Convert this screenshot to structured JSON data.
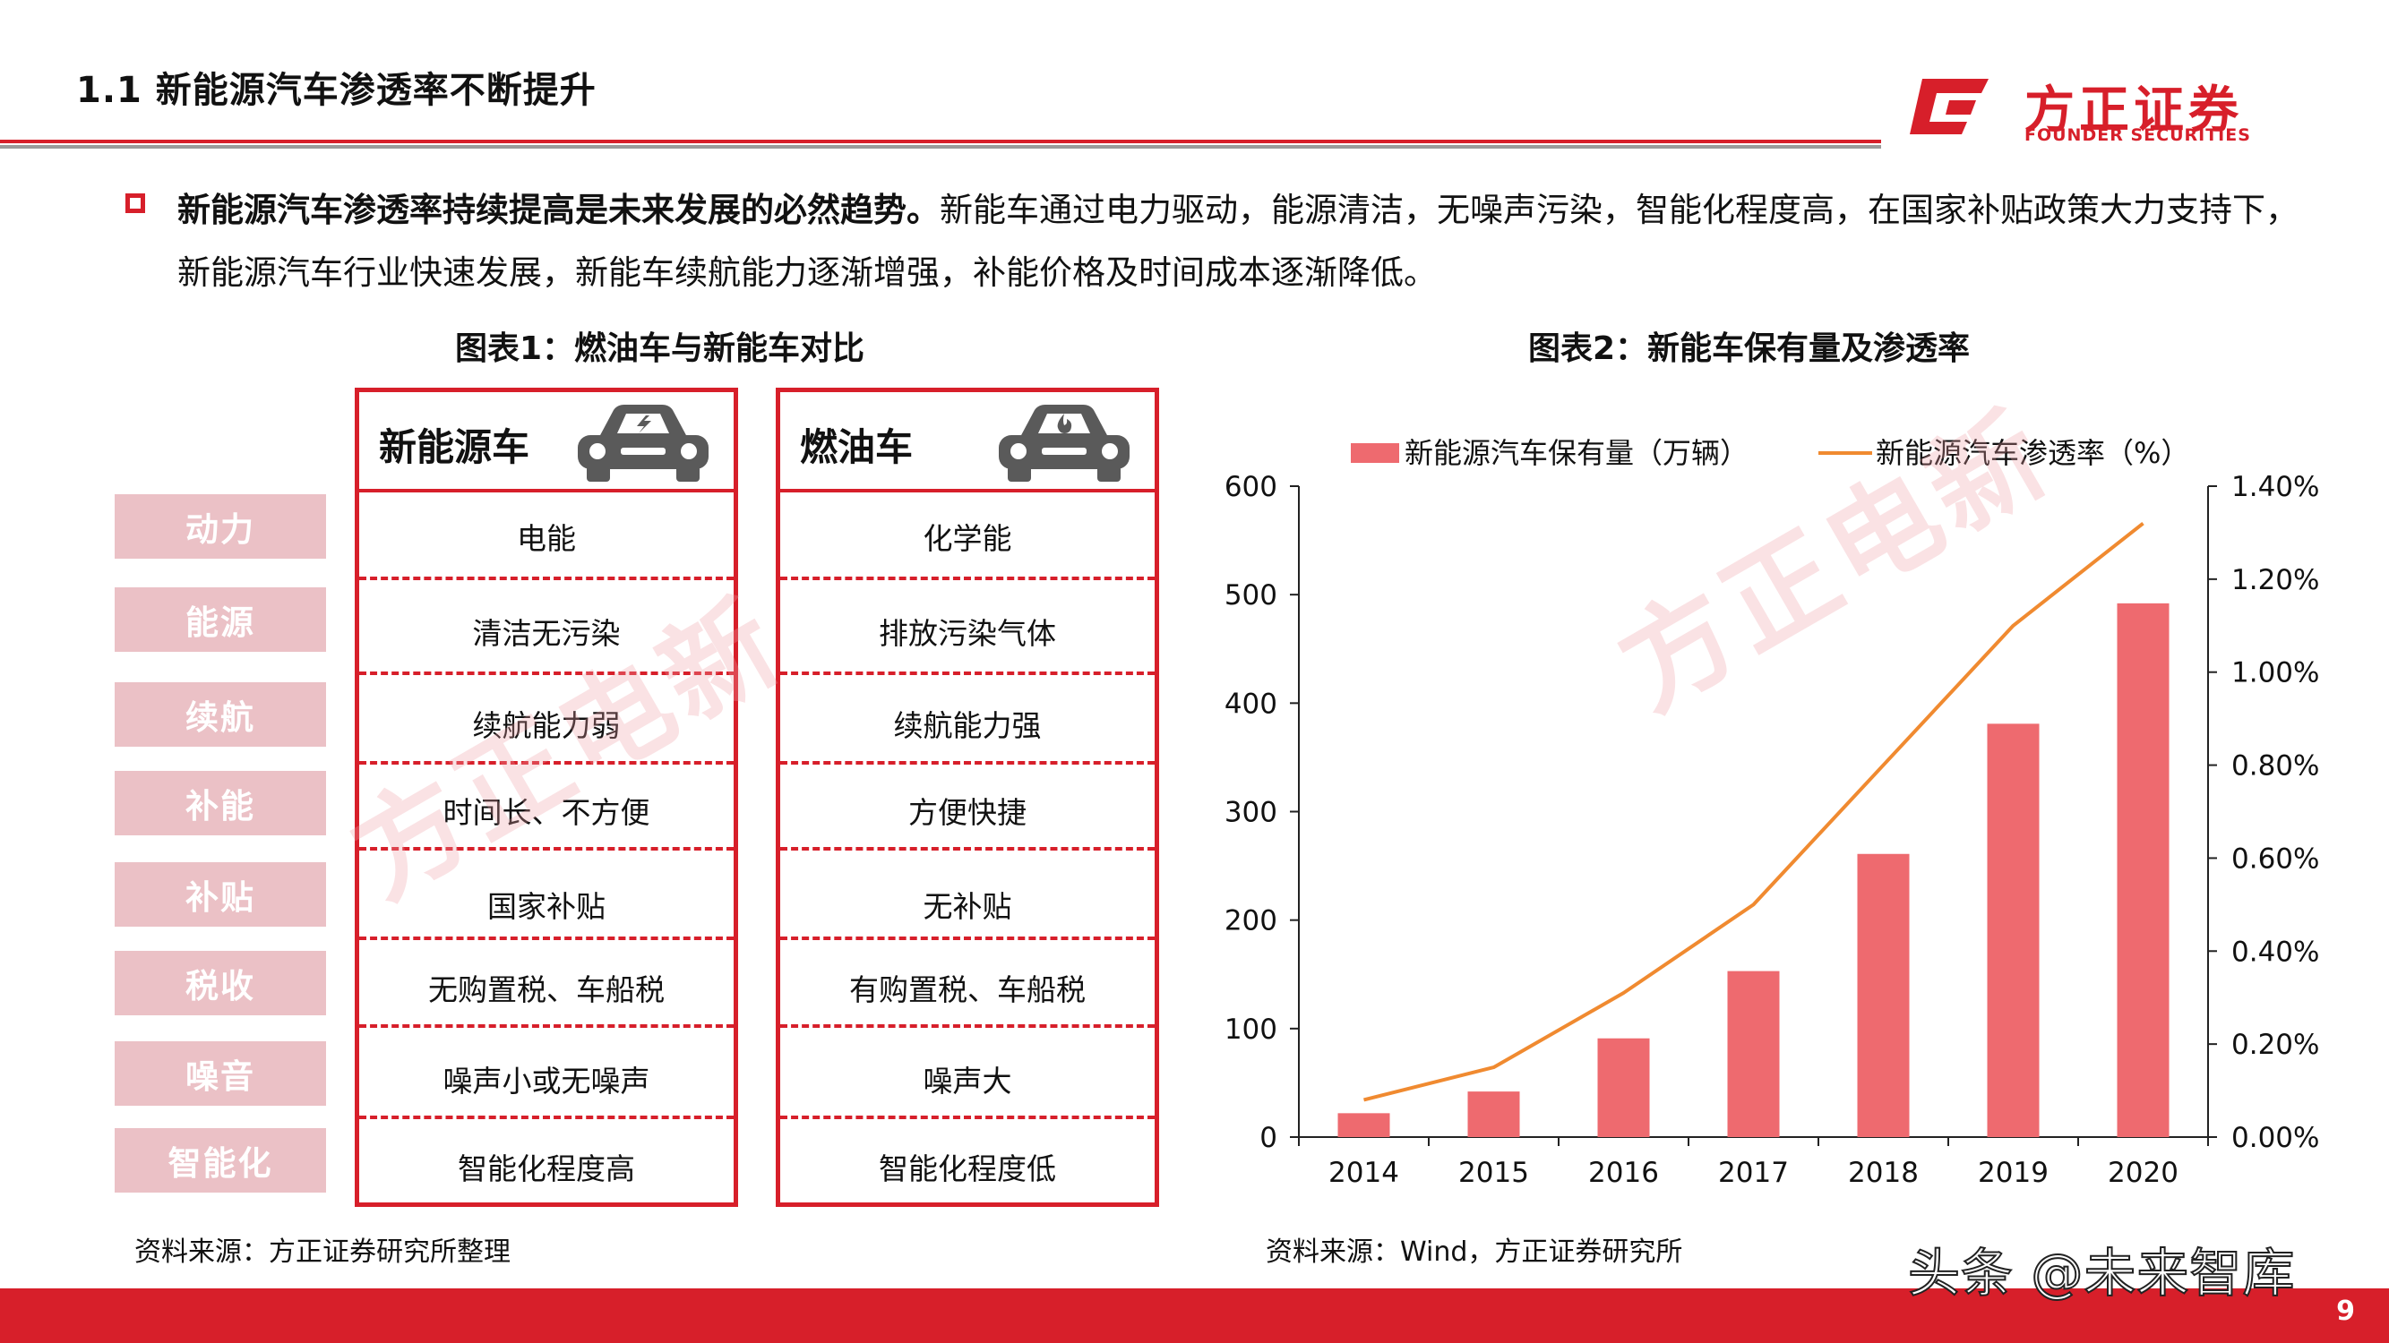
{
  "header": {
    "title": "1.1 新能源汽车渗透率不断提升",
    "logo_cn": "方正证券",
    "logo_en": "FOUNDER SECURITIES"
  },
  "intro": {
    "bold": "新能源汽车渗透率持续提高是未来发展的必然趋势。",
    "text": "新能车通过电力驱动，能源清洁，无噪声污染，智能化程度高，在国家补贴政策大力支持下，新能源汽车行业快速发展，新能车续航能力逐渐增强，补能价格及时间成本逐渐降低。"
  },
  "figure1": {
    "caption": "图表1：燃油车与新能车对比",
    "row_labels": [
      "动力",
      "能源",
      "续航",
      "补能",
      "补贴",
      "税收",
      "噪音",
      "智能化"
    ],
    "ev": {
      "title": "新能源车",
      "icon": "electric-car-icon",
      "cells": [
        "电能",
        "清洁无污染",
        "续航能力弱",
        "时间长、不方便",
        "国家补贴",
        "无购置税、车船税",
        "噪声小或无噪声",
        "智能化程度高"
      ]
    },
    "ice": {
      "title": "燃油车",
      "icon": "fuel-car-icon",
      "cells": [
        "化学能",
        "排放污染气体",
        "续航能力强",
        "方便快捷",
        "无补贴",
        "有购置税、车船税",
        "噪声大",
        "智能化程度低"
      ]
    },
    "source": "资料来源：方正证券研究所整理"
  },
  "figure2": {
    "caption": "图表2：新能车保有量及渗透率",
    "source": "资料来源：Wind，方正证券研究所"
  },
  "chart_data": {
    "type": "bar",
    "categories": [
      "2014",
      "2015",
      "2016",
      "2017",
      "2018",
      "2019",
      "2020"
    ],
    "series": [
      {
        "name": "新能源汽车保有量（万辆）",
        "type": "bar",
        "axis": "left",
        "color": "#ee6a6f",
        "values": [
          22,
          42,
          91,
          153,
          261,
          381,
          492
        ]
      },
      {
        "name": "新能源汽车渗透率（%）",
        "type": "line",
        "axis": "right",
        "color": "#f08a30",
        "values": [
          0.08,
          0.15,
          0.31,
          0.5,
          0.8,
          1.1,
          1.32
        ]
      }
    ],
    "y_left": {
      "min": 0,
      "max": 600,
      "ticks": [
        "0",
        "100",
        "200",
        "300",
        "400",
        "500",
        "600"
      ]
    },
    "y_right": {
      "min": 0,
      "max": 1.4,
      "ticks": [
        "0.00%",
        "0.20%",
        "0.40%",
        "0.60%",
        "0.80%",
        "1.00%",
        "1.20%",
        "1.40%"
      ]
    },
    "legend_position": "top",
    "grid": false
  },
  "watermark": "方正电新",
  "footer": {
    "handle": "头条 @未来智库",
    "page_number": "9"
  },
  "colors": {
    "brand_red": "#d71f2a",
    "label_pink": "#ebc1c6",
    "bar": "#ee6a6f",
    "line": "#f08a30"
  }
}
